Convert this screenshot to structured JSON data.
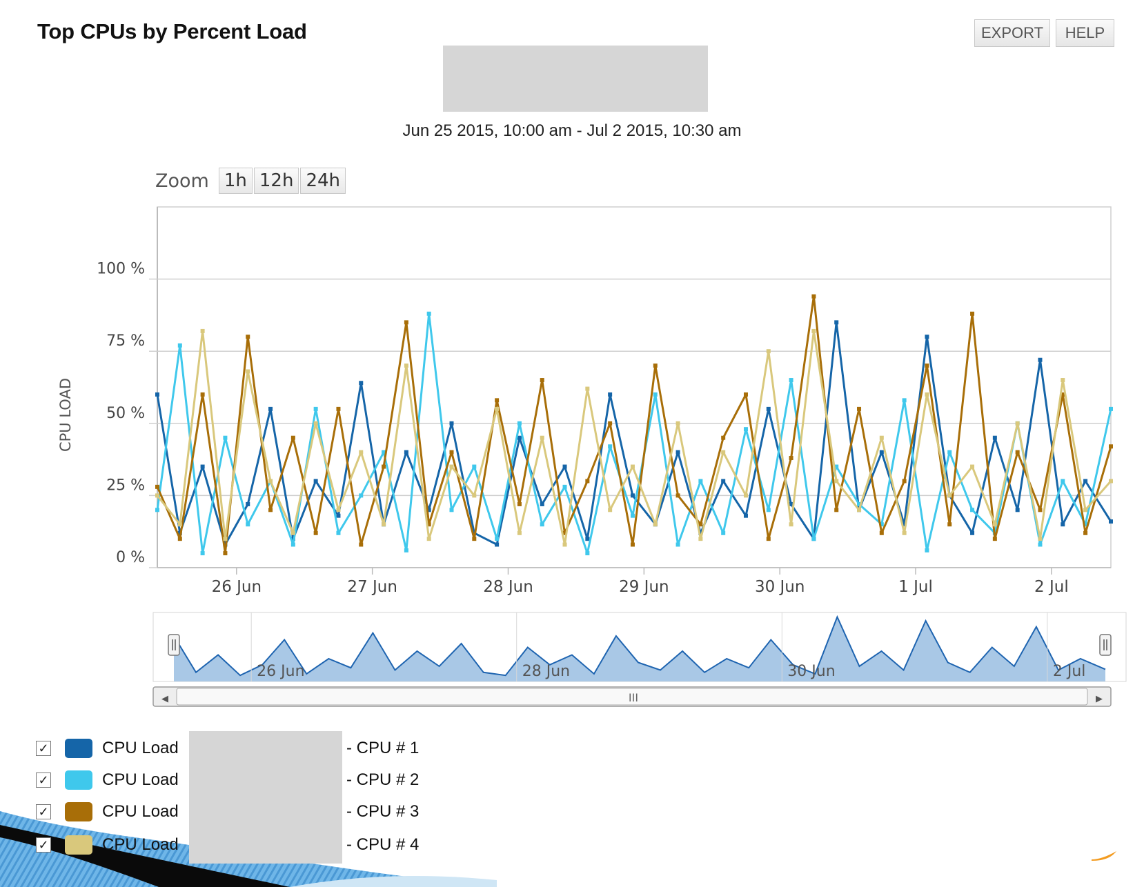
{
  "panel": {
    "title": "Top CPUs by Percent Load",
    "export_label": "EXPORT",
    "help_label": "HELP",
    "date_range": "Jun 25 2015, 10:00 am - Jul 2 2015, 10:30 am"
  },
  "zoom": {
    "label": "Zoom",
    "options": [
      "1h",
      "12h",
      "24h"
    ]
  },
  "legend": {
    "items": [
      {
        "label": "CPU Load",
        "suffix": "- CPU # 1",
        "checked": true
      },
      {
        "label": "CPU Load",
        "suffix": "- CPU # 2",
        "checked": true
      },
      {
        "label": "CPU Load",
        "suffix": "- CPU # 3",
        "checked": true
      },
      {
        "label": "CPU Load",
        "suffix": "- CPU # 4",
        "checked": true
      }
    ],
    "check_glyph": "✓"
  },
  "navigator": {
    "labels": [
      "26 Jun",
      "28 Jun",
      "30 Jun",
      "2 Jul"
    ],
    "scroll_thumb_glyph": "III",
    "left_arrow": "◀",
    "right_arrow": "▶"
  },
  "chart_data": {
    "type": "line",
    "title": "",
    "xlabel": "",
    "ylabel": "CPU LOAD",
    "ylim": [
      0,
      125
    ],
    "y_ticks": [
      "0 %",
      "25 %",
      "50 %",
      "75 %",
      "100 %"
    ],
    "y_tick_values": [
      0,
      25,
      50,
      75,
      100
    ],
    "x_range": [
      "2015-06-25 10:00",
      "2015-07-02 10:30"
    ],
    "x_ticks": [
      {
        "label": "26 Jun",
        "date": "2015-06-26"
      },
      {
        "label": "27 Jun",
        "date": "2015-06-27"
      },
      {
        "label": "28 Jun",
        "date": "2015-06-28"
      },
      {
        "label": "29 Jun",
        "date": "2015-06-29"
      },
      {
        "label": "30 Jun",
        "date": "2015-06-30"
      },
      {
        "label": "1 Jul",
        "date": "2015-07-01"
      },
      {
        "label": "2 Jul",
        "date": "2015-07-02"
      }
    ],
    "grid": true,
    "legend_position": "bottom-left",
    "x": [
      "2015-06-25 10:00",
      "2015-06-25 14:00",
      "2015-06-25 18:00",
      "2015-06-25 22:00",
      "2015-06-26 02:00",
      "2015-06-26 06:00",
      "2015-06-26 10:00",
      "2015-06-26 14:00",
      "2015-06-26 18:00",
      "2015-06-26 22:00",
      "2015-06-27 02:00",
      "2015-06-27 06:00",
      "2015-06-27 10:00",
      "2015-06-27 14:00",
      "2015-06-27 18:00",
      "2015-06-27 22:00",
      "2015-06-28 02:00",
      "2015-06-28 06:00",
      "2015-06-28 10:00",
      "2015-06-28 14:00",
      "2015-06-28 18:00",
      "2015-06-28 22:00",
      "2015-06-29 02:00",
      "2015-06-29 06:00",
      "2015-06-29 10:00",
      "2015-06-29 14:00",
      "2015-06-29 18:00",
      "2015-06-29 22:00",
      "2015-06-30 02:00",
      "2015-06-30 06:00",
      "2015-06-30 10:00",
      "2015-06-30 14:00",
      "2015-06-30 18:00",
      "2015-06-30 22:00",
      "2015-07-01 02:00",
      "2015-07-01 06:00",
      "2015-07-01 10:00",
      "2015-07-01 14:00",
      "2015-07-01 18:00",
      "2015-07-01 22:00",
      "2015-07-02 02:00",
      "2015-07-02 06:00",
      "2015-07-02 10:30"
    ],
    "series": [
      {
        "name": "CPU Load - CPU # 1",
        "color": "#1565a8",
        "values": [
          60,
          12,
          35,
          8,
          22,
          55,
          10,
          30,
          18,
          64,
          15,
          40,
          20,
          50,
          12,
          8,
          45,
          22,
          35,
          10,
          60,
          25,
          15,
          40,
          12,
          30,
          18,
          55,
          22,
          10,
          85,
          20,
          40,
          15,
          80,
          25,
          12,
          45,
          20,
          72,
          15,
          30,
          16
        ]
      },
      {
        "name": "CPU Load - CPU # 2",
        "color": "#3fc8ec",
        "values": [
          20,
          77,
          5,
          45,
          15,
          30,
          8,
          55,
          12,
          25,
          40,
          6,
          88,
          20,
          35,
          10,
          50,
          15,
          28,
          5,
          42,
          18,
          60,
          8,
          30,
          12,
          48,
          20,
          65,
          10,
          35,
          22,
          15,
          58,
          6,
          40,
          20,
          12,
          50,
          8,
          30,
          15,
          55
        ]
      },
      {
        "name": "CPU Load - CPU # 3",
        "color": "#a86e08",
        "values": [
          28,
          10,
          60,
          5,
          80,
          20,
          45,
          12,
          55,
          8,
          35,
          85,
          15,
          40,
          10,
          58,
          22,
          65,
          12,
          30,
          50,
          8,
          70,
          25,
          15,
          45,
          60,
          10,
          38,
          94,
          20,
          55,
          12,
          30,
          70,
          15,
          88,
          10,
          40,
          20,
          60,
          12,
          42
        ]
      },
      {
        "name": "CPU Load - CPU # 4",
        "color": "#d9c87c",
        "values": [
          25,
          15,
          82,
          10,
          68,
          30,
          12,
          50,
          20,
          40,
          15,
          70,
          10,
          35,
          25,
          55,
          12,
          45,
          8,
          62,
          20,
          35,
          15,
          50,
          10,
          40,
          25,
          75,
          15,
          82,
          30,
          20,
          45,
          12,
          60,
          25,
          35,
          15,
          50,
          10,
          65,
          20,
          30
        ]
      }
    ]
  }
}
